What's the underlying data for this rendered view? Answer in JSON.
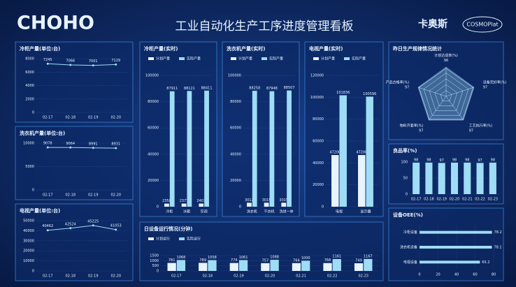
{
  "header": {
    "logo": "CHOHO",
    "title": "工业自动化生产工序进度管理看板",
    "brand": "卡奥斯",
    "platform": "COSMOPlat"
  },
  "chart_data": [
    {
      "type": "line",
      "title": "冷柜产量(单位:台)",
      "categories": [
        "02-17",
        "02-18",
        "02-19",
        "02-20"
      ],
      "values": [
        7245,
        7066,
        7001,
        7129
      ],
      "color": "#9fdcf5",
      "ylim": [
        0,
        8000
      ],
      "yticks": [
        0,
        2000,
        4000,
        6000,
        8000
      ]
    },
    {
      "type": "line",
      "title": "洗衣机产量(单位:台)",
      "categories": [
        "02-17",
        "02-18",
        "02-19",
        "02-20"
      ],
      "values": [
        9078,
        9064,
        8991,
        8931
      ],
      "color": "#9fdcf5",
      "ylim": [
        0,
        10000
      ],
      "yticks": [
        0,
        5000,
        10000
      ]
    },
    {
      "type": "line",
      "title": "电视产量(单位:台)",
      "categories": [
        "02-17",
        "02-18",
        "02-19",
        "02-20"
      ],
      "values": [
        40462,
        42524,
        45225,
        41053
      ],
      "color": "#9fdcf5",
      "ylim": [
        0,
        50000
      ],
      "yticks": [
        0,
        10000,
        20000,
        30000,
        40000,
        50000
      ]
    },
    {
      "type": "bar",
      "title": "冷柜产量(实时)",
      "categories": [
        "冷柜",
        "冰箱",
        "空调"
      ],
      "series": [
        {
          "name": "计划产量",
          "color": "#e8f4ff",
          "values": [
            2358,
            2377,
            2403
          ]
        },
        {
          "name": "实际产量",
          "color": "#9fdcf5",
          "values": [
            87911,
            88121,
            88411
          ]
        }
      ],
      "ylim": [
        0,
        100000
      ],
      "yticks": [
        0,
        20000,
        40000,
        60000,
        80000,
        100000
      ]
    },
    {
      "type": "bar",
      "title": "洗衣机产量(实时)",
      "categories": [
        "洗衣机",
        "干衣机",
        "洗烘一体"
      ],
      "series": [
        {
          "name": "计划产量",
          "color": "#e8f4ff",
          "values": [
            3012,
            3015,
            3015
          ]
        },
        {
          "name": "实际产量",
          "color": "#9fdcf5",
          "values": [
            88258,
            87948,
            88507
          ]
        }
      ],
      "ylim": [
        0,
        100000
      ],
      "yticks": [
        0,
        20000,
        40000,
        60000,
        80000,
        100000
      ]
    },
    {
      "type": "bar",
      "title": "电视产量(实时)",
      "categories": [
        "电视",
        "显示器"
      ],
      "series": [
        {
          "name": "计划产量",
          "color": "#e8f4ff",
          "values": [
            47200,
            47200
          ]
        },
        {
          "name": "实际产量",
          "color": "#9fdcf5",
          "values": [
            101836,
            100596
          ]
        }
      ],
      "ylim": [
        0,
        120000
      ],
      "yticks": [
        0,
        20000,
        40000,
        60000,
        80000,
        100000,
        120000
      ]
    },
    {
      "type": "bar",
      "title": "日设备运行情况(分钟)",
      "categories": [
        "02-17",
        "02-18",
        "02-19",
        "02-20",
        "02-21",
        "02-22",
        "02-23"
      ],
      "series": [
        {
          "name": "计划运行",
          "color": "#e8f4ff",
          "values": [
            781,
            789,
            774,
            757,
            764,
            768,
            749
          ]
        },
        {
          "name": "实际运行",
          "color": "#9fdcf5",
          "values": [
            1068,
            1058,
            1061,
            1088,
            1000,
            1161,
            1167
          ]
        }
      ],
      "ylim": [
        0,
        1500
      ],
      "yticks": [
        0,
        500,
        1000,
        1500
      ]
    },
    {
      "type": "radar",
      "title": "昨日生产规律情况统计",
      "categories": [
        "计划达成率(%)",
        "设备完好率(%)",
        "工艺执行率(%)",
        "物料齐套率(%)",
        "产品合格率(%)"
      ],
      "values": [
        96,
        97,
        97,
        97,
        97
      ],
      "color": "#9fdcf5",
      "rlim": [
        0,
        100
      ]
    },
    {
      "type": "bar",
      "title": "良品率(%)",
      "categories": [
        "02-17",
        "02-18",
        "02-19",
        "02-20",
        "02-21",
        "02-22",
        "02-23"
      ],
      "series": [
        {
          "name": "良品率",
          "color": "#9fdcf5",
          "values": [
            98,
            98,
            97,
            98,
            98,
            97,
            98
          ]
        }
      ],
      "ylim": [
        0,
        100
      ],
      "yticks": [
        0,
        50,
        100
      ]
    },
    {
      "type": "hbar",
      "title": "设备OEE(%)",
      "categories": [
        "冷柜设备",
        "洗衣机设备",
        "电视设备"
      ],
      "values": [
        78.2,
        78.1,
        65.2
      ],
      "color": "#9fdcf5",
      "xlim": [
        0,
        80
      ],
      "xticks": [
        0,
        20,
        40,
        60,
        80
      ]
    }
  ]
}
